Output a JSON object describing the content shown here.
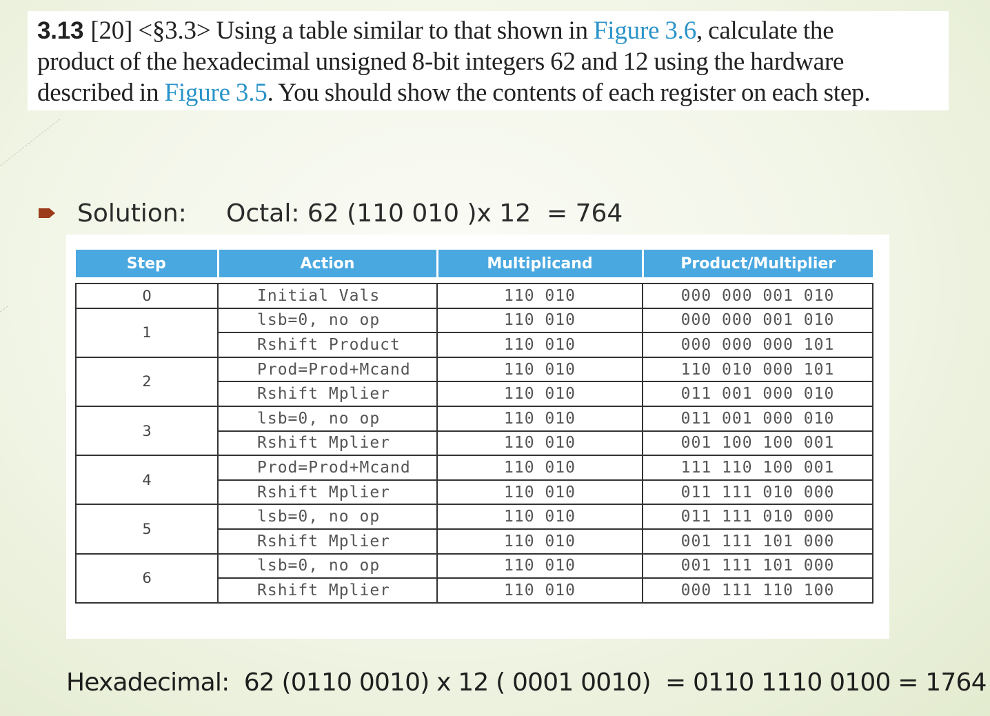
{
  "problem": {
    "number": "3.13",
    "line1_pre": "[20] <§3.3> Using a table similar to that shown in ",
    "ref1": "Figure 3.6",
    "line1_post": ", calculate the",
    "line2": "product of the hexadecimal unsigned 8-bit integers 62 and 12 using the hardware",
    "line3_pre": "described in ",
    "ref2": "Figure 3.5",
    "line3_post": ". You should show the contents of each register on each step."
  },
  "solution": {
    "label": "Solution:",
    "text": "Octal: 62 (110 010 )x 12  = 764"
  },
  "table": {
    "headers": [
      "Step",
      "Action",
      "Multiplicand",
      "Product/Multiplier"
    ],
    "groups": [
      {
        "step": "0",
        "rows": [
          [
            "Initial Vals",
            "110 010",
            "000 000 001 010"
          ]
        ]
      },
      {
        "step": "1",
        "rows": [
          [
            "lsb=0, no op",
            "110 010",
            "000 000 001 010"
          ],
          [
            "Rshift Product",
            "110 010",
            "000 000 000 101"
          ]
        ]
      },
      {
        "step": "2",
        "rows": [
          [
            "Prod=Prod+Mcand",
            "110 010",
            "110 010 000 101"
          ],
          [
            "Rshift Mplier",
            "110 010",
            "011 001 000 010"
          ]
        ]
      },
      {
        "step": "3",
        "rows": [
          [
            "lsb=0, no op",
            "110 010",
            "011 001 000 010"
          ],
          [
            "Rshift Mplier",
            "110 010",
            "001 100 100 001"
          ]
        ]
      },
      {
        "step": "4",
        "rows": [
          [
            "Prod=Prod+Mcand",
            "110 010",
            "111 110 100 001"
          ],
          [
            "Rshift Mplier",
            "110 010",
            "011 111 010 000"
          ]
        ]
      },
      {
        "step": "5",
        "rows": [
          [
            "lsb=0, no op",
            "110 010",
            "011 111 010 000"
          ],
          [
            "Rshift Mplier",
            "110 010",
            "001 111 101 000"
          ]
        ]
      },
      {
        "step": "6",
        "rows": [
          [
            "lsb=0, no op",
            "110 010",
            "001 111 101 000"
          ],
          [
            "Rshift Mplier",
            "110 010",
            "000 111 110 100"
          ]
        ]
      }
    ]
  },
  "hex": {
    "text": "Hexadecimal:  62 (0110 0010) x 12 ( 0001 0010)  = 0110 1110 0100 = 1764"
  },
  "colors": {
    "header_bg": "#4aa8e0",
    "link": "#2a93c9",
    "bullet": "#9b3b1b"
  }
}
